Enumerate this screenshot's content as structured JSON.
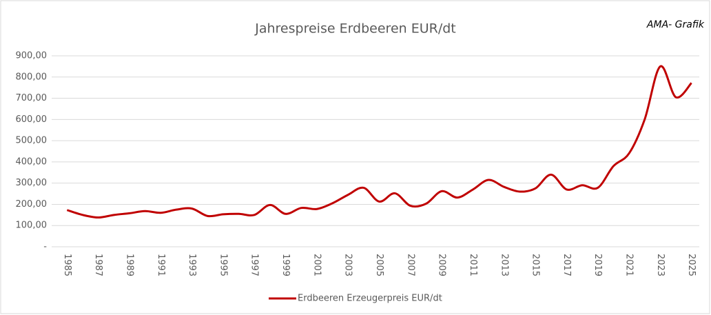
{
  "chart_data": {
    "type": "line",
    "title": "Jahrespreise Erdbeeren EUR/dt",
    "annotation": "AMA- Grafik",
    "categories": [
      "1985",
      null,
      "1987",
      null,
      "1989",
      null,
      "1991",
      null,
      "1993",
      null,
      "1995",
      null,
      "1997",
      null,
      "1999",
      null,
      "2001",
      null,
      "2003",
      null,
      "2005",
      null,
      "2007",
      null,
      "2009",
      null,
      "2011",
      null,
      "2013",
      null,
      "2015",
      null,
      "2017",
      null,
      "2019",
      null,
      "2021",
      null,
      "2023",
      null,
      "2025"
    ],
    "series": [
      {
        "name": "Erdbeeren Erzeugerpreis EUR/dt",
        "color": "#c00000",
        "values": [
          173,
          150,
          138,
          150,
          158,
          168,
          160,
          175,
          180,
          145,
          153,
          155,
          150,
          197,
          155,
          183,
          178,
          205,
          245,
          278,
          213,
          252,
          193,
          203,
          262,
          232,
          270,
          315,
          282,
          260,
          275,
          340,
          270,
          290,
          278,
          380,
          440,
          600,
          850,
          705,
          772
        ]
      }
    ],
    "ylim": [
      0,
      900
    ],
    "yticks": [
      {
        "value": 0,
        "label": "-"
      },
      {
        "value": 100,
        "label": "100,00"
      },
      {
        "value": 200,
        "label": "200,00"
      },
      {
        "value": 300,
        "label": "300,00"
      },
      {
        "value": 400,
        "label": "400,00"
      },
      {
        "value": 500,
        "label": "500,00"
      },
      {
        "value": 600,
        "label": "600,00"
      },
      {
        "value": 700,
        "label": "700,00"
      },
      {
        "value": 800,
        "label": "800,00"
      },
      {
        "value": 900,
        "label": "900,00"
      }
    ],
    "grid": true,
    "legend": "bottom"
  }
}
